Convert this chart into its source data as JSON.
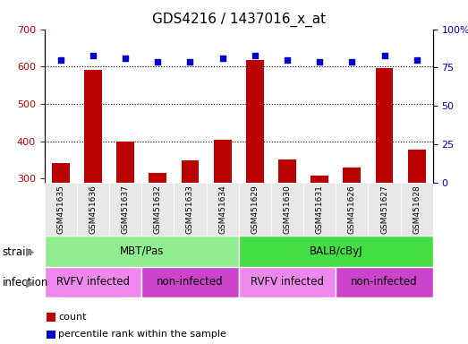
{
  "title": "GDS4216 / 1437016_x_at",
  "samples": [
    "GSM451635",
    "GSM451636",
    "GSM451637",
    "GSM451632",
    "GSM451633",
    "GSM451634",
    "GSM451629",
    "GSM451630",
    "GSM451631",
    "GSM451626",
    "GSM451627",
    "GSM451628"
  ],
  "counts": [
    342,
    590,
    400,
    315,
    348,
    403,
    617,
    352,
    307,
    330,
    597,
    378
  ],
  "percentiles": [
    80,
    83,
    81,
    79,
    79,
    81,
    83,
    80,
    79,
    79,
    83,
    80
  ],
  "ylim_left": [
    290,
    700
  ],
  "ylim_right": [
    0,
    100
  ],
  "yticks_left": [
    300,
    400,
    500,
    600,
    700
  ],
  "yticks_right": [
    0,
    25,
    50,
    75,
    100
  ],
  "bar_color": "#bb0000",
  "scatter_color": "#0000cc",
  "bg_color": "#e8e8e8",
  "strain_groups": [
    {
      "label": "MBT/Pas",
      "start": 0,
      "end": 6,
      "color": "#90ee90"
    },
    {
      "label": "BALB/cByJ",
      "start": 6,
      "end": 12,
      "color": "#44dd44"
    }
  ],
  "infection_groups": [
    {
      "label": "RVFV infected",
      "start": 0,
      "end": 3,
      "color": "#ee88ee"
    },
    {
      "label": "non-infected",
      "start": 3,
      "end": 6,
      "color": "#cc44cc"
    },
    {
      "label": "RVFV infected",
      "start": 6,
      "end": 9,
      "color": "#ee88ee"
    },
    {
      "label": "non-infected",
      "start": 9,
      "end": 12,
      "color": "#cc44cc"
    }
  ],
  "legend_count_label": "count",
  "legend_percentile_label": "percentile rank within the sample",
  "strain_label": "strain",
  "infection_label": "infection",
  "title_fontsize": 11,
  "tick_fontsize": 8,
  "label_fontsize": 8.5
}
